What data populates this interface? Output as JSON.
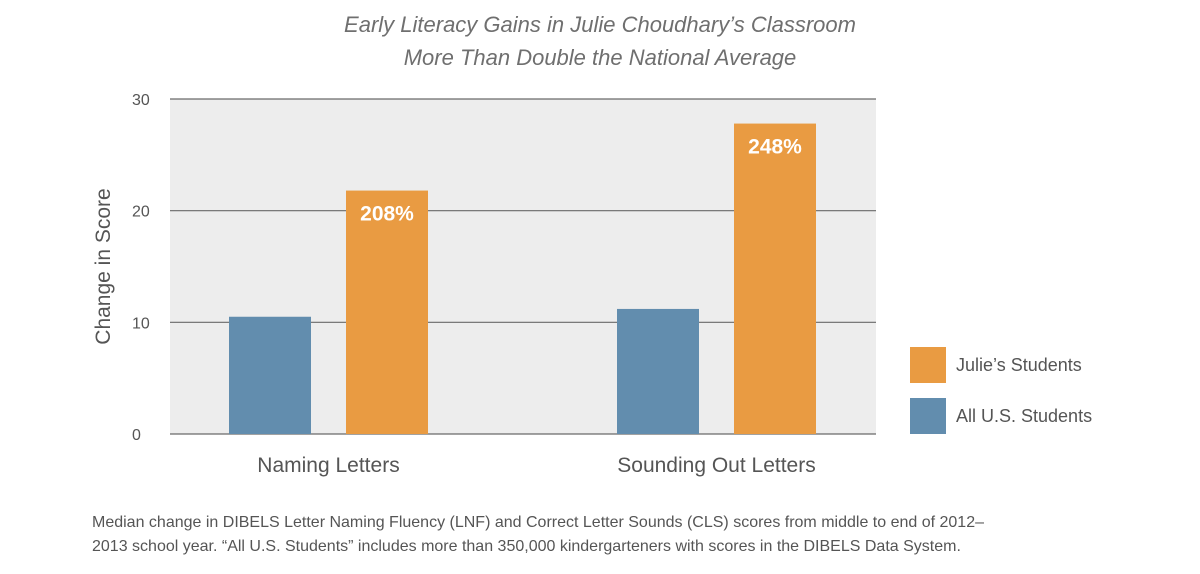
{
  "chart_data": {
    "type": "bar",
    "title_lines": [
      "Early Literacy Gains in Julie Choudhary’s Classroom",
      "More Than Double the National Average"
    ],
    "ylabel": "Change in Score",
    "xlabel": "",
    "ylim": [
      0,
      30
    ],
    "yticks": [
      "0",
      "10",
      "20",
      "30"
    ],
    "ytick_values": [
      0,
      10,
      20,
      30
    ],
    "grid": true,
    "legend_position": "right",
    "categories": [
      "Naming Letters",
      "Sounding Out Letters"
    ],
    "series": [
      {
        "name": "All U.S. Students",
        "color": "#628DAE",
        "values": [
          10.5,
          11.2
        ],
        "data_labels": [
          "",
          ""
        ]
      },
      {
        "name": "Julie’s Students",
        "color": "#E99B42",
        "values": [
          21.8,
          27.8
        ],
        "data_labels": [
          "208%",
          "248%"
        ]
      }
    ],
    "plot_background": "#EDEDED"
  },
  "legend": [
    {
      "label": "Julie’s Students",
      "color": "#E99B42"
    },
    {
      "label": "All U.S. Students",
      "color": "#628DAE"
    }
  ],
  "footnote_lines": [
    "Median change in DIBELS Letter Naming Fluency (LNF) and Correct Letter Sounds (CLS) scores from middle to end of 2012–",
    "2013 school year. “All U.S. Students” includes more than 350,000 kindergarteners with scores in the DIBELS Data System."
  ]
}
